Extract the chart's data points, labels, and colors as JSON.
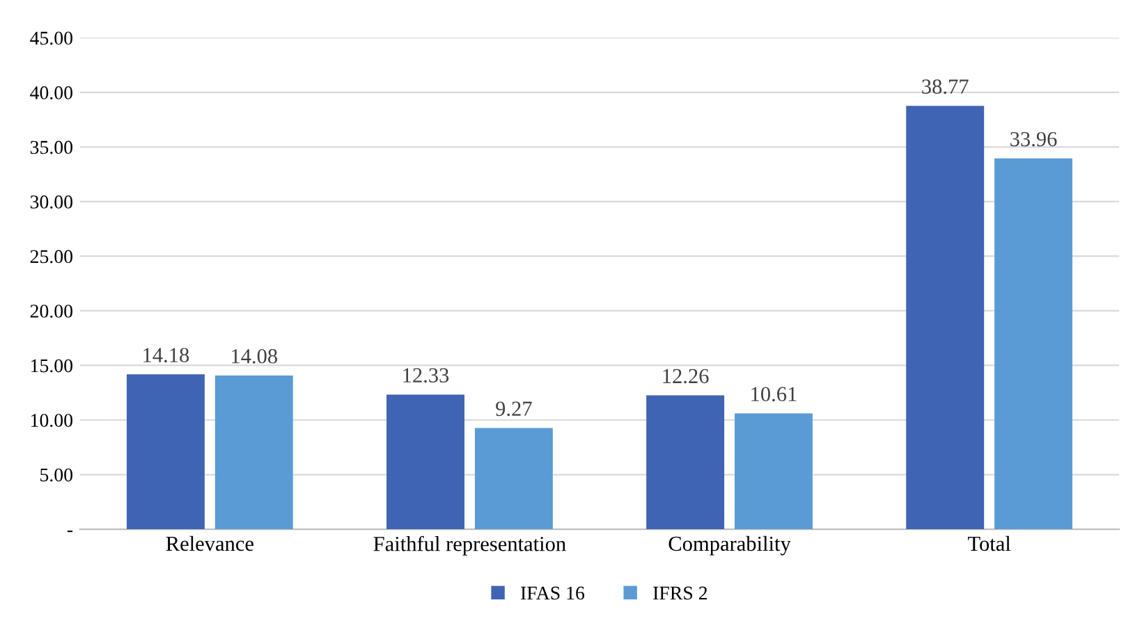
{
  "chart_data": {
    "type": "bar",
    "categories": [
      "Relevance",
      "Faithful representation",
      "Comparability",
      "Total"
    ],
    "series": [
      {
        "name": "IFAS 16",
        "color": "#4064b4",
        "values": [
          14.18,
          12.33,
          12.26,
          38.77
        ]
      },
      {
        "name": "IFRS 2",
        "color": "#5b9bd5",
        "values": [
          14.08,
          9.27,
          10.61,
          33.96
        ]
      }
    ],
    "ylim": [
      0,
      45
    ],
    "yticks": [
      {
        "value": 0,
        "label": "-"
      },
      {
        "value": 5,
        "label": "5.00"
      },
      {
        "value": 10,
        "label": "10.00"
      },
      {
        "value": 15,
        "label": "15.00"
      },
      {
        "value": 20,
        "label": "20.00"
      },
      {
        "value": 25,
        "label": "25.00"
      },
      {
        "value": 30,
        "label": "30.00"
      },
      {
        "value": 35,
        "label": "35.00"
      },
      {
        "value": 40,
        "label": "40.00"
      },
      {
        "value": 45,
        "label": "45.00"
      }
    ],
    "grid": "y",
    "legend": "bottom",
    "data_labels": true
  }
}
